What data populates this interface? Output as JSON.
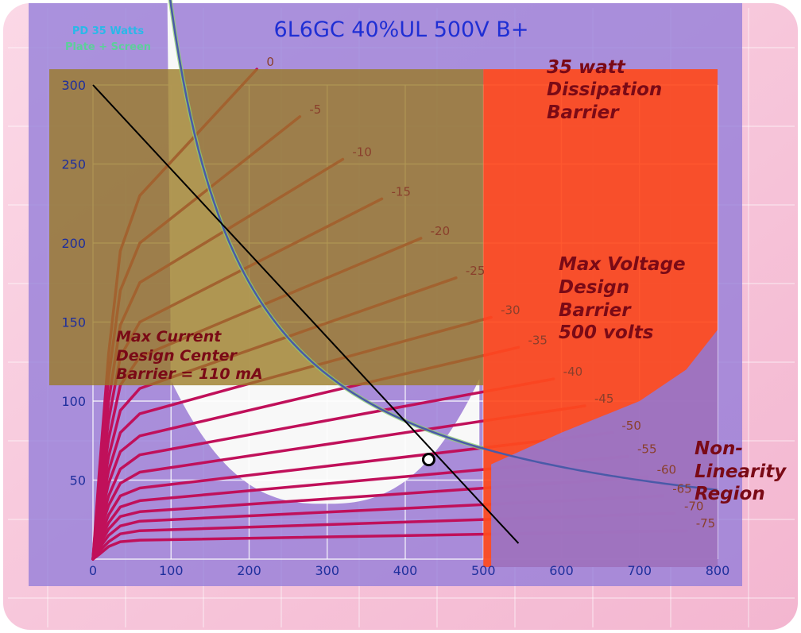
{
  "chart_data": {
    "type": "line",
    "title": "6L6GC 40%UL 500V B+",
    "xlabel": "",
    "ylabel": "",
    "xlim": [
      0,
      800
    ],
    "ylim": [
      0,
      300
    ],
    "x_ticks": [
      "0",
      "100",
      "200",
      "300",
      "400",
      "500",
      "600",
      "700",
      "800"
    ],
    "y_ticks": [
      "50",
      "100",
      "150",
      "200",
      "250",
      "300"
    ],
    "grid": true,
    "series": [
      {
        "name": "0",
        "points": [
          [
            0,
            0
          ],
          [
            8,
            55
          ],
          [
            20,
            130
          ],
          [
            35,
            195
          ],
          [
            60,
            230
          ],
          [
            210,
            310
          ]
        ]
      },
      {
        "name": "-5",
        "points": [
          [
            0,
            0
          ],
          [
            8,
            50
          ],
          [
            20,
            115
          ],
          [
            35,
            170
          ],
          [
            60,
            200
          ],
          [
            265,
            280
          ]
        ]
      },
      {
        "name": "-10",
        "points": [
          [
            0,
            0
          ],
          [
            8,
            45
          ],
          [
            20,
            100
          ],
          [
            35,
            148
          ],
          [
            60,
            175
          ],
          [
            320,
            253
          ]
        ]
      },
      {
        "name": "-15",
        "points": [
          [
            0,
            0
          ],
          [
            8,
            40
          ],
          [
            20,
            88
          ],
          [
            35,
            128
          ],
          [
            60,
            150
          ],
          [
            370,
            228
          ]
        ]
      },
      {
        "name": "-20",
        "points": [
          [
            0,
            0
          ],
          [
            8,
            35
          ],
          [
            20,
            76
          ],
          [
            35,
            110
          ],
          [
            60,
            128
          ],
          [
            420,
            203
          ]
        ]
      },
      {
        "name": "-25",
        "points": [
          [
            0,
            0
          ],
          [
            8,
            30
          ],
          [
            20,
            65
          ],
          [
            35,
            94
          ],
          [
            60,
            108
          ],
          [
            465,
            178
          ]
        ]
      },
      {
        "name": "-30",
        "points": [
          [
            0,
            0
          ],
          [
            8,
            26
          ],
          [
            20,
            56
          ],
          [
            35,
            80
          ],
          [
            60,
            92
          ],
          [
            510,
            153
          ]
        ]
      },
      {
        "name": "-35",
        "points": [
          [
            0,
            0
          ],
          [
            8,
            22
          ],
          [
            20,
            48
          ],
          [
            35,
            68
          ],
          [
            60,
            78
          ],
          [
            545,
            134
          ]
        ]
      },
      {
        "name": "-40",
        "points": [
          [
            0,
            0
          ],
          [
            8,
            19
          ],
          [
            20,
            40
          ],
          [
            35,
            57
          ],
          [
            60,
            66
          ],
          [
            590,
            114
          ]
        ]
      },
      {
        "name": "-45",
        "points": [
          [
            0,
            0
          ],
          [
            8,
            16
          ],
          [
            20,
            34
          ],
          [
            35,
            48
          ],
          [
            60,
            55
          ],
          [
            630,
            97
          ]
        ]
      },
      {
        "name": "-50",
        "points": [
          [
            0,
            0
          ],
          [
            8,
            13
          ],
          [
            20,
            28
          ],
          [
            35,
            40
          ],
          [
            60,
            45
          ],
          [
            665,
            80
          ]
        ]
      },
      {
        "name": "-55",
        "points": [
          [
            0,
            0
          ],
          [
            8,
            11
          ],
          [
            20,
            23
          ],
          [
            35,
            33
          ],
          [
            60,
            37
          ],
          [
            685,
            65
          ]
        ]
      },
      {
        "name": "-60",
        "points": [
          [
            0,
            0
          ],
          [
            8,
            9
          ],
          [
            20,
            19
          ],
          [
            35,
            27
          ],
          [
            60,
            30
          ],
          [
            710,
            52
          ]
        ]
      },
      {
        "name": "-65",
        "points": [
          [
            0,
            0
          ],
          [
            8,
            7
          ],
          [
            20,
            15
          ],
          [
            35,
            21
          ],
          [
            60,
            24
          ],
          [
            730,
            40
          ]
        ]
      },
      {
        "name": "-70",
        "points": [
          [
            0,
            0
          ],
          [
            8,
            5
          ],
          [
            20,
            11
          ],
          [
            35,
            16
          ],
          [
            60,
            18
          ],
          [
            745,
            29
          ]
        ]
      },
      {
        "name": "-75",
        "points": [
          [
            0,
            0
          ],
          [
            8,
            3
          ],
          [
            20,
            8
          ],
          [
            35,
            11
          ],
          [
            60,
            12
          ],
          [
            760,
            18
          ]
        ]
      }
    ],
    "load_line": {
      "from": [
        0,
        300
      ],
      "to": [
        545,
        10
      ]
    },
    "operating_point": [
      430,
      63
    ],
    "dissipation_curve_watts": 35,
    "regions": {
      "current_limit_ma": 110,
      "voltage_limit_v": 500,
      "non_linearity_boundary": [
        [
          510,
          60
        ],
        [
          600,
          80
        ],
        [
          700,
          100
        ],
        [
          760,
          120
        ],
        [
          800,
          145
        ]
      ]
    }
  },
  "annotations": {
    "pd_line1": "PD 35 Watts",
    "pd_line2": "Plate + Screen",
    "dissipation": [
      "35 watt",
      "Dissipation",
      "Barrier"
    ],
    "max_voltage": [
      "Max Voltage",
      "Design",
      "Barrier",
      "500 volts"
    ],
    "max_current": [
      "Max Current",
      "Design  Center",
      "Barrier = 110 mA"
    ],
    "non_linearity": [
      "Non-",
      "Linearity",
      "Region"
    ]
  },
  "colors": {
    "curve": "#c0105a",
    "curve_dark": "#1a1a1a",
    "tick": "#1f2f9c",
    "title": "#1f2fd4",
    "dissipation_region": "#ff4a1c",
    "current_region": "#9a7a22",
    "purple_region": "#8f79d9",
    "region_text": "#7a0a16",
    "pink_bg": "#f7c6da"
  }
}
